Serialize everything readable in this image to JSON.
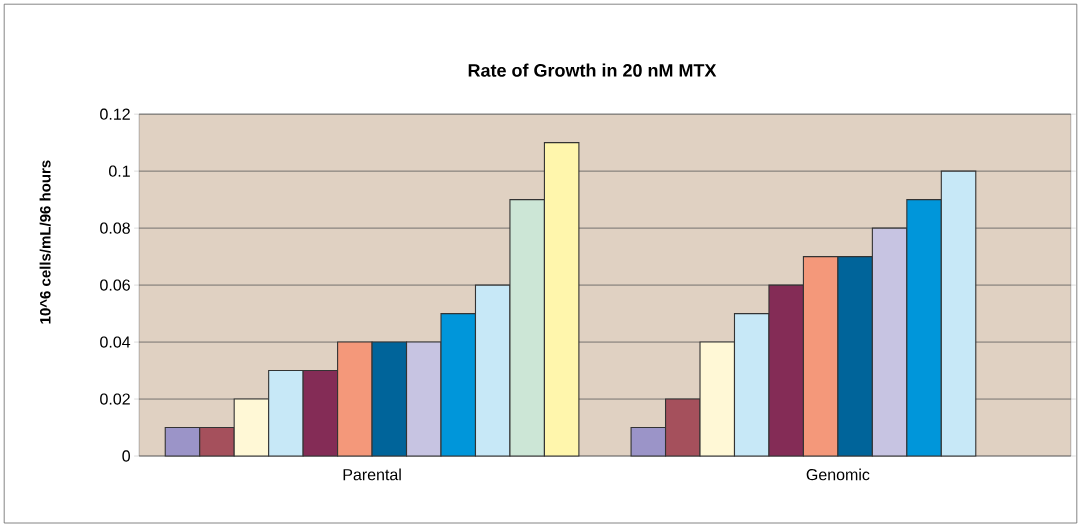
{
  "chart_data": {
    "type": "bar",
    "title": "Rate of Growth in 20 nM MTX",
    "ylabel": "10^6 cells/mL/96 hours",
    "categories": [
      "Parental",
      "Genomic"
    ],
    "series": [
      {
        "color": "#9b94c8",
        "values": [
          0.01,
          0.01
        ]
      },
      {
        "color": "#a5505c",
        "values": [
          0.01,
          0.02
        ]
      },
      {
        "color": "#fff8d6",
        "values": [
          0.02,
          0.04
        ]
      },
      {
        "color": "#c7e8f7",
        "values": [
          0.03,
          0.05
        ]
      },
      {
        "color": "#842c56",
        "values": [
          0.03,
          0.06
        ]
      },
      {
        "color": "#f4987a",
        "values": [
          0.04,
          0.07
        ]
      },
      {
        "color": "#00649a",
        "values": [
          0.04,
          0.07
        ]
      },
      {
        "color": "#c7c4e2",
        "values": [
          0.04,
          0.08
        ]
      },
      {
        "color": "#0096da",
        "values": [
          0.05,
          0.09
        ]
      },
      {
        "color": "#c7e8f7",
        "values": [
          0.06,
          0.1
        ]
      },
      {
        "color": "#cce6d6",
        "values": [
          0.09,
          null
        ]
      },
      {
        "color": "#fff6ac",
        "values": [
          0.11,
          null
        ]
      }
    ],
    "ylim": [
      0,
      0.12
    ],
    "yticks": [
      0,
      0.02,
      0.04,
      0.06,
      0.08,
      0.1,
      0.12
    ],
    "grid": "y"
  }
}
